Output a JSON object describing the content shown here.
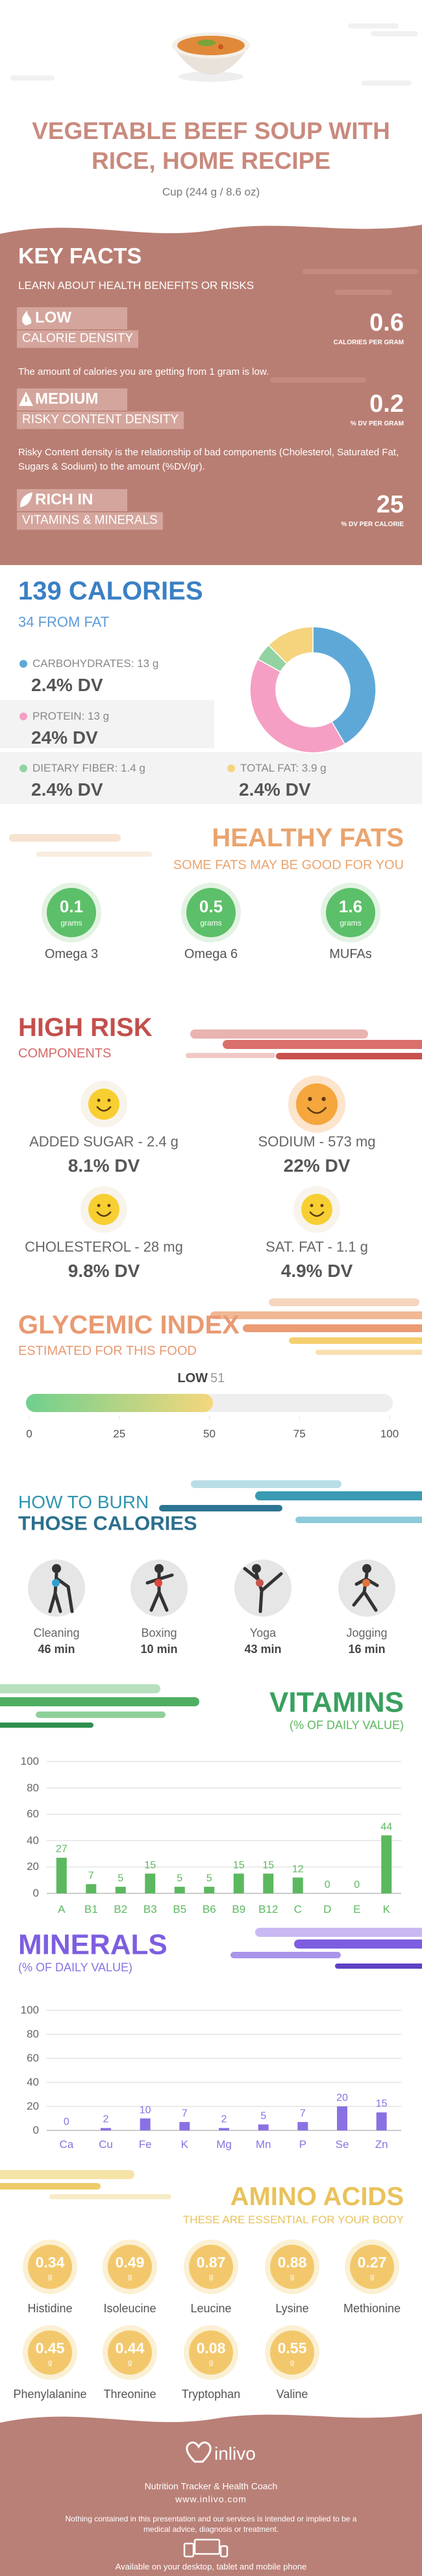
{
  "header": {
    "title": "VEGETABLE BEEF SOUP WITH RICE, HOME RECIPE",
    "serving": "Cup (244 g / 8.6 oz)"
  },
  "key_facts": {
    "title": "KEY FACTS",
    "subtitle": "LEARN ABOUT HEALTH BENEFITS OR RISKS",
    "items": [
      {
        "level": "LOW",
        "label": "CALORIE DENSITY",
        "value": 0.6,
        "unit": "CALORIES PER GRAM",
        "description": "The amount of calories you are getting from 1 gram is low."
      },
      {
        "level": "MEDIUM",
        "label": "RISKY CONTENT DENSITY",
        "value": 0.2,
        "unit": "% DV PER GRAM",
        "description": "Risky Content density is the relationship of bad components (Cholesterol, Saturated Fat, Sugars & Sodium) to the amount (%DV/gr)."
      },
      {
        "level": "RICH  IN",
        "label": "VITAMINS & MINERALS",
        "value": 25,
        "unit": "% DV PER CALORIE"
      }
    ]
  },
  "calories": {
    "title": "139 CALORIES",
    "subtitle": "34 FROM FAT",
    "nutrients": [
      {
        "label": "CARBOHYDRATES: 13 g",
        "dv": "2.4% DV"
      },
      {
        "label": "PROTEIN: 13 g",
        "dv": "24% DV"
      },
      {
        "label": "DIETARY FIBER: 1.4 g",
        "dv": "2.4% DV"
      },
      {
        "label": "TOTAL FAT: 3.9 g",
        "dv": "2.4% DV"
      }
    ]
  },
  "healthy_fats": {
    "title": "HEALTHY FATS",
    "subtitle": "SOME FATS MAY BE GOOD FOR YOU",
    "items": [
      {
        "name": "Omega 3",
        "value": 0.1,
        "unit": "grams"
      },
      {
        "name": "Omega 6",
        "value": 0.5,
        "unit": "grams"
      },
      {
        "name": "MUFAs",
        "value": 1.6,
        "unit": "grams"
      }
    ]
  },
  "high_risk": {
    "title": "HIGH RISK",
    "subtitle": "COMPONENTS",
    "items": [
      {
        "label": "ADDED SUGAR - 2.4 g",
        "dv": "8.1% DV"
      },
      {
        "label": "SODIUM - 573 mg",
        "dv": "22% DV"
      },
      {
        "label": "CHOLESTEROL - 28 mg",
        "dv": "9.8% DV"
      },
      {
        "label": "SAT. FAT - 1.1 g",
        "dv": "4.9% DV"
      }
    ]
  },
  "burn": {
    "title": "HOW TO BURN",
    "subtitle": "THOSE CALORIES",
    "activities": [
      {
        "name": "Cleaning",
        "time": "46 min"
      },
      {
        "name": "Boxing",
        "time": "10 min"
      },
      {
        "name": "Yoga",
        "time": "43 min"
      },
      {
        "name": "Jogging",
        "time": "16 min"
      }
    ]
  },
  "amino_acids": {
    "title": "AMINO ACIDS",
    "subtitle": "THESE ARE ESSENTIAL FOR YOUR BODY",
    "items": [
      {
        "name": "Histidine",
        "value": 0.34,
        "unit": "g"
      },
      {
        "name": "Isoleucine",
        "value": 0.49,
        "unit": "g"
      },
      {
        "name": "Leucine",
        "value": 0.87,
        "unit": "g"
      },
      {
        "name": "Lysine",
        "value": 0.88,
        "unit": "g"
      },
      {
        "name": "Methionine",
        "value": 0.27,
        "unit": "g"
      },
      {
        "name": "Phenylalanine",
        "value": 0.45,
        "unit": "g"
      },
      {
        "name": "Threonine",
        "value": 0.44,
        "unit": "g"
      },
      {
        "name": "Tryptophan",
        "value": 0.08,
        "unit": "g"
      },
      {
        "name": "Valine",
        "value": 0.55,
        "unit": "g"
      }
    ]
  },
  "footer": {
    "brand": "inlivo",
    "tagline": "Nutrition Tracker & Health Coach",
    "website": "www.inlivo.com",
    "disclaimer": "Nothing contained in this presentation and our services is intended or implied to be a medical advice, diagnosis or treatment.",
    "availability": "Available on your desktop, tablet and mobile phone"
  },
  "chart_data": [
    {
      "type": "pie",
      "values": [
        13,
        13,
        1.4,
        3.9
      ],
      "colors": [
        "#5ea8d8",
        "#f59fc4",
        "#93d3a2",
        "#f6d47e"
      ]
    },
    {
      "type": "gauge",
      "title": "GLYCEMIC INDEX",
      "subtitle": "ESTIMATED FOR THIS FOOD",
      "label": "LOW",
      "value": 51,
      "xlim": [
        0,
        100
      ],
      "xticks": [
        0,
        25,
        50,
        75,
        100
      ],
      "colors": [
        "#6fd08e",
        "#f5d77c"
      ]
    },
    {
      "type": "bar",
      "title": "VITAMINS",
      "subtitle": "(% OF DAILY VALUE)",
      "categories": [
        "A",
        "B1",
        "B2",
        "B3",
        "B5",
        "B6",
        "B9",
        "B12",
        "C",
        "D",
        "E",
        "K"
      ],
      "values": [
        27,
        7,
        5,
        15,
        5,
        5,
        15,
        15,
        12,
        0,
        0,
        44
      ],
      "color": "#5cb85f",
      "ylim": [
        0,
        100
      ],
      "yticks": [
        0,
        20,
        40,
        60,
        80,
        100
      ],
      "grid": true
    },
    {
      "type": "bar",
      "title": "MINERALS",
      "subtitle": "(% OF DAILY VALUE)",
      "categories": [
        "Ca",
        "Cu",
        "Fe",
        "K",
        "Mg",
        "Mn",
        "P",
        "Se",
        "Zn"
      ],
      "values": [
        0,
        2,
        10,
        7,
        2,
        5,
        7,
        20,
        15
      ],
      "color": "#8a71e3",
      "ylim": [
        0,
        100
      ],
      "yticks": [
        0,
        20,
        40,
        60,
        80,
        100
      ],
      "grid": true
    }
  ]
}
